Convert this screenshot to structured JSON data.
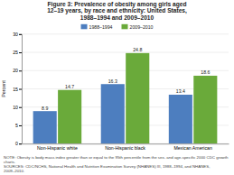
{
  "chart_data": {
    "type": "bar",
    "title": "Figure 3: Prevalence of obesity among girls aged\n12–19 years, by race and ethnicity: United States,\n1988–1994 and 2009–2010",
    "categories": [
      "Non-Hispanic white",
      "Non-Hispanic black",
      "Mexican American"
    ],
    "series": [
      {
        "name": "1988–1994",
        "color": "#4d7ebf",
        "values": [
          8.9,
          16.3,
          13.4
        ]
      },
      {
        "name": "2009–2010",
        "color": "#6aaa3a",
        "values": [
          14.7,
          24.8,
          18.6
        ]
      }
    ],
    "ylabel": "Percent",
    "ylim": [
      0,
      30
    ],
    "yticks": [
      0,
      5,
      10,
      15,
      20,
      25,
      30
    ],
    "grid": true,
    "data_labels": true,
    "legend": "top",
    "annotations": [
      "NOTE: Obesity is body mass index greater than or equal to the 95th percentile from the sex- and age-specific 2000 CDC growth charts.",
      "SOURCES: CDC/NCHS, National Health and Nutrition Examination Survey (NHANES) III, 1988–1994, and NHANES, 2009–2010."
    ]
  }
}
